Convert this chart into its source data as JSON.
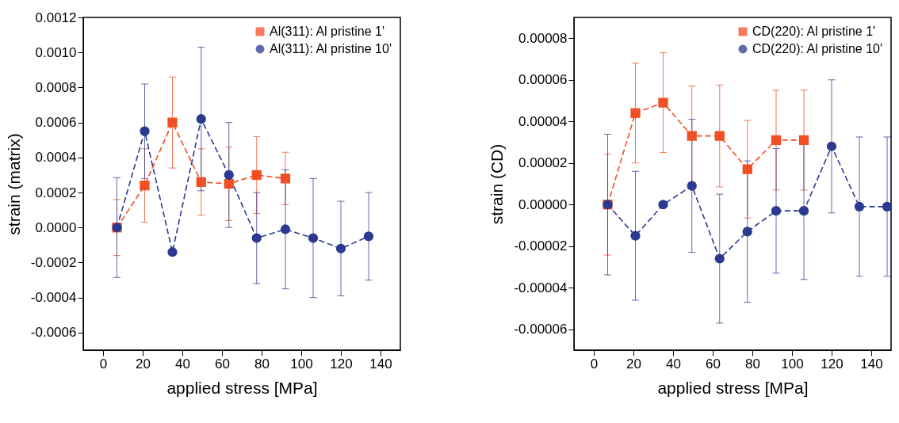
{
  "chart_data": [
    {
      "type": "line",
      "xlabel": "applied stress [MPa]",
      "ylabel": "strain (matrix)",
      "xlim": [
        -10,
        150
      ],
      "xticks": [
        0,
        20,
        40,
        60,
        80,
        100,
        120,
        140
      ],
      "ylim": [
        -0.0007,
        0.0012
      ],
      "yticks": [
        {
          "value": -0.0006,
          "label": "-0.0006"
        },
        {
          "value": -0.0004,
          "label": "-0.0004"
        },
        {
          "value": -0.0002,
          "label": "-0.0002"
        },
        {
          "value": 0,
          "label": "0.0000"
        },
        {
          "value": 0.0002,
          "label": "0.0002"
        },
        {
          "value": 0.0004,
          "label": "0.0004"
        },
        {
          "value": 0.0006,
          "label": "0.0006"
        },
        {
          "value": 0.0008,
          "label": "0.0008"
        },
        {
          "value": 0.001,
          "label": "0.0010"
        },
        {
          "value": 0.0012,
          "label": "0.0012"
        }
      ],
      "grid": false,
      "legend": "top right",
      "line_style": "dashed",
      "series": [
        {
          "name": "Al(311): Al pristine 1'",
          "color": "#f04e23",
          "marker": "square",
          "x": [
            7,
            21,
            35,
            49.5,
            63.5,
            77.5,
            92
          ],
          "values": [
            0,
            0.00024,
            0.0006,
            0.00026,
            0.00025,
            0.0003,
            0.00028
          ],
          "errors": [
            0.00016,
            0.00021,
            0.00026,
            0.00019,
            0.00021,
            0.00022,
            0.00015
          ]
        },
        {
          "name": "Al(311): Al pristine 10'",
          "color": "#2b3990",
          "marker": "circle",
          "x": [
            7,
            21,
            35,
            49.5,
            63.5,
            77.5,
            92,
            106,
            120,
            134
          ],
          "values": [
            0,
            0.00055,
            -0.00014,
            0.00062,
            0.0003,
            -6e-05,
            -1e-05,
            -6e-05,
            -0.00012,
            -5e-05
          ],
          "errors": [
            0.000285,
            0.00027,
            null,
            0.00041,
            0.0003,
            0.00026,
            0.00034,
            0.00034,
            0.00027,
            0.00025
          ]
        }
      ]
    },
    {
      "type": "line",
      "xlabel": "applied stress [MPa]",
      "ylabel": "strain (CD)",
      "xlim": [
        -10,
        150
      ],
      "xticks": [
        0,
        20,
        40,
        60,
        80,
        100,
        120,
        140
      ],
      "ylim": [
        -7e-05,
        9e-05
      ],
      "yticks": [
        {
          "value": -6e-05,
          "label": "-0.00006"
        },
        {
          "value": -4e-05,
          "label": "-0.00004"
        },
        {
          "value": -2e-05,
          "label": "-0.00002"
        },
        {
          "value": 0,
          "label": "0.00000"
        },
        {
          "value": 2e-05,
          "label": "0.00002"
        },
        {
          "value": 4e-05,
          "label": "0.00004"
        },
        {
          "value": 6e-05,
          "label": "0.00006"
        },
        {
          "value": 8e-05,
          "label": "0.00008"
        }
      ],
      "grid": false,
      "legend": "top right",
      "line_style": "dashed",
      "series": [
        {
          "name": "CD(220): Al pristine 1'",
          "color": "#f04e23",
          "marker": "square",
          "x": [
            7,
            21,
            35,
            49.5,
            63.5,
            77.5,
            92,
            106
          ],
          "values": [
            0,
            4.4e-05,
            4.9e-05,
            3.3e-05,
            3.3e-05,
            1.7e-05,
            3.1e-05,
            3.1e-05
          ],
          "errors": [
            2.43e-05,
            2.4e-05,
            2.4e-05,
            2.4e-05,
            2.45e-05,
            2.35e-05,
            2.4e-05,
            2.4e-05
          ]
        },
        {
          "name": "CD(220): Al pristine 10'",
          "color": "#2b3990",
          "marker": "circle",
          "x": [
            7,
            21,
            35,
            49.5,
            63.5,
            77.5,
            92,
            106,
            120,
            134,
            148
          ],
          "values": [
            0,
            -1.5e-05,
            0,
            9e-06,
            -2.6e-05,
            -1.3e-05,
            -3e-06,
            -3e-06,
            2.8e-05,
            -1e-06,
            -1e-06
          ],
          "errors": [
            3.38e-05,
            3.1e-05,
            null,
            3.2e-05,
            3.1e-05,
            3.4e-05,
            3e-05,
            3.3e-05,
            3.2e-05,
            3.35e-05,
            3.35e-05
          ]
        }
      ]
    }
  ]
}
